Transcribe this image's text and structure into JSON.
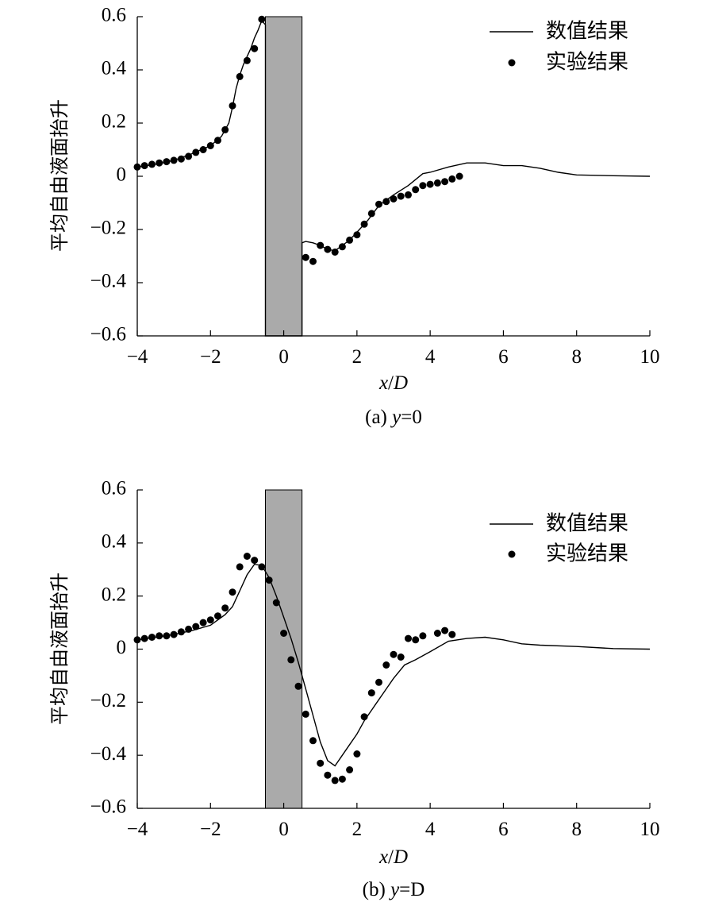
{
  "chart_data": [
    {
      "type": "line",
      "subplot_label": "(a)",
      "caption_var": "y",
      "caption_value": "=0",
      "xlabel_var": "x",
      "xlabel_sep": "/",
      "xlabel_unit": "D",
      "ylabel": "平均自由液面抬升",
      "xlim": [
        -4,
        10
      ],
      "ylim": [
        -0.6,
        0.6
      ],
      "xticks": [
        -4,
        -2,
        0,
        2,
        4,
        6,
        8,
        10
      ],
      "xtick_labels": [
        "−4",
        "−2",
        "0",
        "2",
        "4",
        "6",
        "8",
        "10"
      ],
      "yticks": [
        0.6,
        0.4,
        0.2,
        0,
        -0.2,
        -0.4,
        -0.6
      ],
      "ytick_labels": [
        "0.6",
        "0.4",
        "0.2",
        "0",
        "−0.2",
        "−0.4",
        "−0.6"
      ],
      "shaded_region": {
        "x": [
          -0.5,
          0.5
        ],
        "y": [
          -0.6,
          0.6
        ],
        "color": "#aaaaaa"
      },
      "legend_position": "top-right",
      "grid": false,
      "series": [
        {
          "name": "数值结果",
          "kind": "line",
          "points": [
            [
              -4,
              0.035
            ],
            [
              -3.5,
              0.045
            ],
            [
              -3,
              0.06
            ],
            [
              -2.5,
              0.085
            ],
            [
              -2,
              0.115
            ],
            [
              -1.7,
              0.15
            ],
            [
              -1.5,
              0.2
            ],
            [
              -1.4,
              0.26
            ],
            [
              -1.3,
              0.33
            ],
            [
              -1.2,
              0.38
            ],
            [
              -1.1,
              0.42
            ],
            [
              -1,
              0.45
            ],
            [
              -0.9,
              0.48
            ],
            [
              -0.8,
              0.52
            ],
            [
              -0.7,
              0.55
            ],
            [
              -0.6,
              0.585
            ],
            [
              -0.5,
              0.57
            ],
            [
              -0.5,
              0.4
            ],
            [
              -0.5,
              0.1
            ],
            [
              -0.5,
              -0.2
            ],
            [
              -0.5,
              -0.6
            ],
            [
              0.5,
              -0.6
            ],
            [
              0.5,
              -0.25
            ],
            [
              0.6,
              -0.245
            ],
            [
              0.8,
              -0.25
            ],
            [
              1,
              -0.26
            ],
            [
              1.2,
              -0.275
            ],
            [
              1.4,
              -0.28
            ],
            [
              1.6,
              -0.26
            ],
            [
              1.8,
              -0.24
            ],
            [
              2,
              -0.21
            ],
            [
              2.3,
              -0.165
            ],
            [
              2.6,
              -0.11
            ],
            [
              3,
              -0.07
            ],
            [
              3.4,
              -0.035
            ],
            [
              3.8,
              0.01
            ],
            [
              4,
              0.015
            ],
            [
              4.5,
              0.035
            ],
            [
              5,
              0.05
            ],
            [
              5.5,
              0.05
            ],
            [
              6,
              0.04
            ],
            [
              6.5,
              0.04
            ],
            [
              7,
              0.03
            ],
            [
              7.5,
              0.015
            ],
            [
              8,
              0.005
            ],
            [
              9,
              0.002
            ],
            [
              10,
              0
            ]
          ]
        },
        {
          "name": "实验结果",
          "kind": "scatter",
          "points": [
            [
              -4,
              0.035
            ],
            [
              -3.8,
              0.04
            ],
            [
              -3.6,
              0.045
            ],
            [
              -3.4,
              0.05
            ],
            [
              -3.2,
              0.055
            ],
            [
              -3,
              0.06
            ],
            [
              -2.8,
              0.065
            ],
            [
              -2.6,
              0.075
            ],
            [
              -2.4,
              0.09
            ],
            [
              -2.2,
              0.1
            ],
            [
              -2,
              0.115
            ],
            [
              -1.8,
              0.135
            ],
            [
              -1.6,
              0.175
            ],
            [
              -1.4,
              0.265
            ],
            [
              -1.2,
              0.375
            ],
            [
              -1,
              0.435
            ],
            [
              -0.8,
              0.48
            ],
            [
              -0.6,
              0.59
            ],
            [
              0.6,
              -0.305
            ],
            [
              0.8,
              -0.32
            ],
            [
              1,
              -0.26
            ],
            [
              1.2,
              -0.275
            ],
            [
              1.4,
              -0.285
            ],
            [
              1.6,
              -0.265
            ],
            [
              1.8,
              -0.24
            ],
            [
              2,
              -0.22
            ],
            [
              2.2,
              -0.18
            ],
            [
              2.4,
              -0.14
            ],
            [
              2.6,
              -0.105
            ],
            [
              2.8,
              -0.095
            ],
            [
              3,
              -0.085
            ],
            [
              3.2,
              -0.075
            ],
            [
              3.4,
              -0.07
            ],
            [
              3.6,
              -0.05
            ],
            [
              3.8,
              -0.035
            ],
            [
              4,
              -0.03
            ],
            [
              4.2,
              -0.025
            ],
            [
              4.4,
              -0.02
            ],
            [
              4.6,
              -0.01
            ],
            [
              4.8,
              0
            ]
          ]
        }
      ]
    },
    {
      "type": "line",
      "subplot_label": "(b)",
      "caption_var": "y",
      "caption_value": "=D",
      "xlabel_var": "x",
      "xlabel_sep": "/",
      "xlabel_unit": "D",
      "ylabel": "平均自由液面抬升",
      "xlim": [
        -4,
        10
      ],
      "ylim": [
        -0.6,
        0.6
      ],
      "xticks": [
        -4,
        -2,
        0,
        2,
        4,
        6,
        8,
        10
      ],
      "xtick_labels": [
        "−4",
        "−2",
        "0",
        "2",
        "4",
        "6",
        "8",
        "10"
      ],
      "yticks": [
        0.6,
        0.4,
        0.2,
        0,
        -0.2,
        -0.4,
        -0.6
      ],
      "ytick_labels": [
        "0.6",
        "0.4",
        "0.2",
        "0",
        "−0.2",
        "−0.4",
        "−0.6"
      ],
      "shaded_region": {
        "x": [
          -0.5,
          0.5
        ],
        "y": [
          -0.6,
          0.6
        ],
        "color": "#aaaaaa"
      },
      "legend_position": "top-right",
      "grid": false,
      "series": [
        {
          "name": "数值结果",
          "kind": "line",
          "points": [
            [
              -4,
              0.035
            ],
            [
              -3.5,
              0.045
            ],
            [
              -3,
              0.055
            ],
            [
              -2.5,
              0.07
            ],
            [
              -2,
              0.09
            ],
            [
              -1.6,
              0.13
            ],
            [
              -1.4,
              0.16
            ],
            [
              -1.2,
              0.22
            ],
            [
              -1,
              0.28
            ],
            [
              -0.8,
              0.32
            ],
            [
              -0.6,
              0.315
            ],
            [
              -0.4,
              0.27
            ],
            [
              -0.2,
              0.2
            ],
            [
              0,
              0.12
            ],
            [
              0.2,
              0.04
            ],
            [
              0.4,
              -0.05
            ],
            [
              0.6,
              -0.15
            ],
            [
              0.8,
              -0.25
            ],
            [
              1,
              -0.35
            ],
            [
              1.2,
              -0.42
            ],
            [
              1.4,
              -0.44
            ],
            [
              1.6,
              -0.4
            ],
            [
              1.8,
              -0.36
            ],
            [
              2,
              -0.32
            ],
            [
              2.2,
              -0.27
            ],
            [
              2.5,
              -0.21
            ],
            [
              2.8,
              -0.15
            ],
            [
              3,
              -0.11
            ],
            [
              3.3,
              -0.06
            ],
            [
              3.6,
              -0.04
            ],
            [
              4,
              -0.01
            ],
            [
              4.5,
              0.03
            ],
            [
              5,
              0.04
            ],
            [
              5.5,
              0.045
            ],
            [
              6,
              0.035
            ],
            [
              6.5,
              0.02
            ],
            [
              7,
              0.015
            ],
            [
              8,
              0.01
            ],
            [
              9,
              0.002
            ],
            [
              10,
              0
            ]
          ]
        },
        {
          "name": "实验结果",
          "kind": "scatter",
          "points": [
            [
              -4,
              0.035
            ],
            [
              -3.8,
              0.04
            ],
            [
              -3.6,
              0.045
            ],
            [
              -3.4,
              0.05
            ],
            [
              -3.2,
              0.05
            ],
            [
              -3,
              0.055
            ],
            [
              -2.8,
              0.065
            ],
            [
              -2.6,
              0.075
            ],
            [
              -2.4,
              0.085
            ],
            [
              -2.2,
              0.1
            ],
            [
              -2,
              0.11
            ],
            [
              -1.8,
              0.125
            ],
            [
              -1.6,
              0.155
            ],
            [
              -1.4,
              0.215
            ],
            [
              -1.2,
              0.31
            ],
            [
              -1,
              0.35
            ],
            [
              -0.8,
              0.335
            ],
            [
              -0.6,
              0.31
            ],
            [
              -0.4,
              0.26
            ],
            [
              -0.2,
              0.175
            ],
            [
              0,
              0.06
            ],
            [
              0.2,
              -0.04
            ],
            [
              0.4,
              -0.14
            ],
            [
              0.6,
              -0.245
            ],
            [
              0.8,
              -0.345
            ],
            [
              1,
              -0.43
            ],
            [
              1.2,
              -0.475
            ],
            [
              1.4,
              -0.495
            ],
            [
              1.6,
              -0.49
            ],
            [
              1.8,
              -0.455
            ],
            [
              2,
              -0.395
            ],
            [
              2.2,
              -0.255
            ],
            [
              2.4,
              -0.165
            ],
            [
              2.6,
              -0.125
            ],
            [
              2.8,
              -0.06
            ],
            [
              3,
              -0.02
            ],
            [
              3.2,
              -0.03
            ],
            [
              3.4,
              0.04
            ],
            [
              3.6,
              0.035
            ],
            [
              3.8,
              0.05
            ],
            [
              4.2,
              0.06
            ],
            [
              4.4,
              0.07
            ],
            [
              4.6,
              0.055
            ]
          ]
        }
      ]
    }
  ]
}
